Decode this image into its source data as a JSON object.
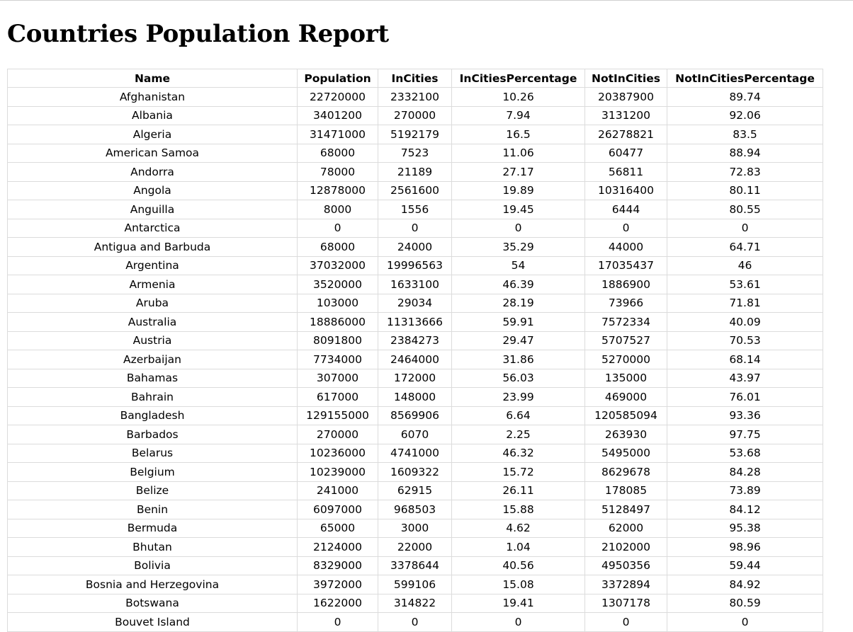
{
  "page": {
    "title": "Countries Population Report"
  },
  "table": {
    "headers": [
      "Name",
      "Population",
      "InCities",
      "InCitiesPercentage",
      "NotInCities",
      "NotInCitiesPercentage"
    ],
    "rows": [
      [
        "Afghanistan",
        "22720000",
        "2332100",
        "10.26",
        "20387900",
        "89.74"
      ],
      [
        "Albania",
        "3401200",
        "270000",
        "7.94",
        "3131200",
        "92.06"
      ],
      [
        "Algeria",
        "31471000",
        "5192179",
        "16.5",
        "26278821",
        "83.5"
      ],
      [
        "American Samoa",
        "68000",
        "7523",
        "11.06",
        "60477",
        "88.94"
      ],
      [
        "Andorra",
        "78000",
        "21189",
        "27.17",
        "56811",
        "72.83"
      ],
      [
        "Angola",
        "12878000",
        "2561600",
        "19.89",
        "10316400",
        "80.11"
      ],
      [
        "Anguilla",
        "8000",
        "1556",
        "19.45",
        "6444",
        "80.55"
      ],
      [
        "Antarctica",
        "0",
        "0",
        "0",
        "0",
        "0"
      ],
      [
        "Antigua and Barbuda",
        "68000",
        "24000",
        "35.29",
        "44000",
        "64.71"
      ],
      [
        "Argentina",
        "37032000",
        "19996563",
        "54",
        "17035437",
        "46"
      ],
      [
        "Armenia",
        "3520000",
        "1633100",
        "46.39",
        "1886900",
        "53.61"
      ],
      [
        "Aruba",
        "103000",
        "29034",
        "28.19",
        "73966",
        "71.81"
      ],
      [
        "Australia",
        "18886000",
        "11313666",
        "59.91",
        "7572334",
        "40.09"
      ],
      [
        "Austria",
        "8091800",
        "2384273",
        "29.47",
        "5707527",
        "70.53"
      ],
      [
        "Azerbaijan",
        "7734000",
        "2464000",
        "31.86",
        "5270000",
        "68.14"
      ],
      [
        "Bahamas",
        "307000",
        "172000",
        "56.03",
        "135000",
        "43.97"
      ],
      [
        "Bahrain",
        "617000",
        "148000",
        "23.99",
        "469000",
        "76.01"
      ],
      [
        "Bangladesh",
        "129155000",
        "8569906",
        "6.64",
        "120585094",
        "93.36"
      ],
      [
        "Barbados",
        "270000",
        "6070",
        "2.25",
        "263930",
        "97.75"
      ],
      [
        "Belarus",
        "10236000",
        "4741000",
        "46.32",
        "5495000",
        "53.68"
      ],
      [
        "Belgium",
        "10239000",
        "1609322",
        "15.72",
        "8629678",
        "84.28"
      ],
      [
        "Belize",
        "241000",
        "62915",
        "26.11",
        "178085",
        "73.89"
      ],
      [
        "Benin",
        "6097000",
        "968503",
        "15.88",
        "5128497",
        "84.12"
      ],
      [
        "Bermuda",
        "65000",
        "3000",
        "4.62",
        "62000",
        "95.38"
      ],
      [
        "Bhutan",
        "2124000",
        "22000",
        "1.04",
        "2102000",
        "98.96"
      ],
      [
        "Bolivia",
        "8329000",
        "3378644",
        "40.56",
        "4950356",
        "59.44"
      ],
      [
        "Bosnia and Herzegovina",
        "3972000",
        "599106",
        "15.08",
        "3372894",
        "84.92"
      ],
      [
        "Botswana",
        "1622000",
        "314822",
        "19.41",
        "1307178",
        "80.59"
      ],
      [
        "Bouvet Island",
        "0",
        "0",
        "0",
        "0",
        "0"
      ]
    ]
  }
}
